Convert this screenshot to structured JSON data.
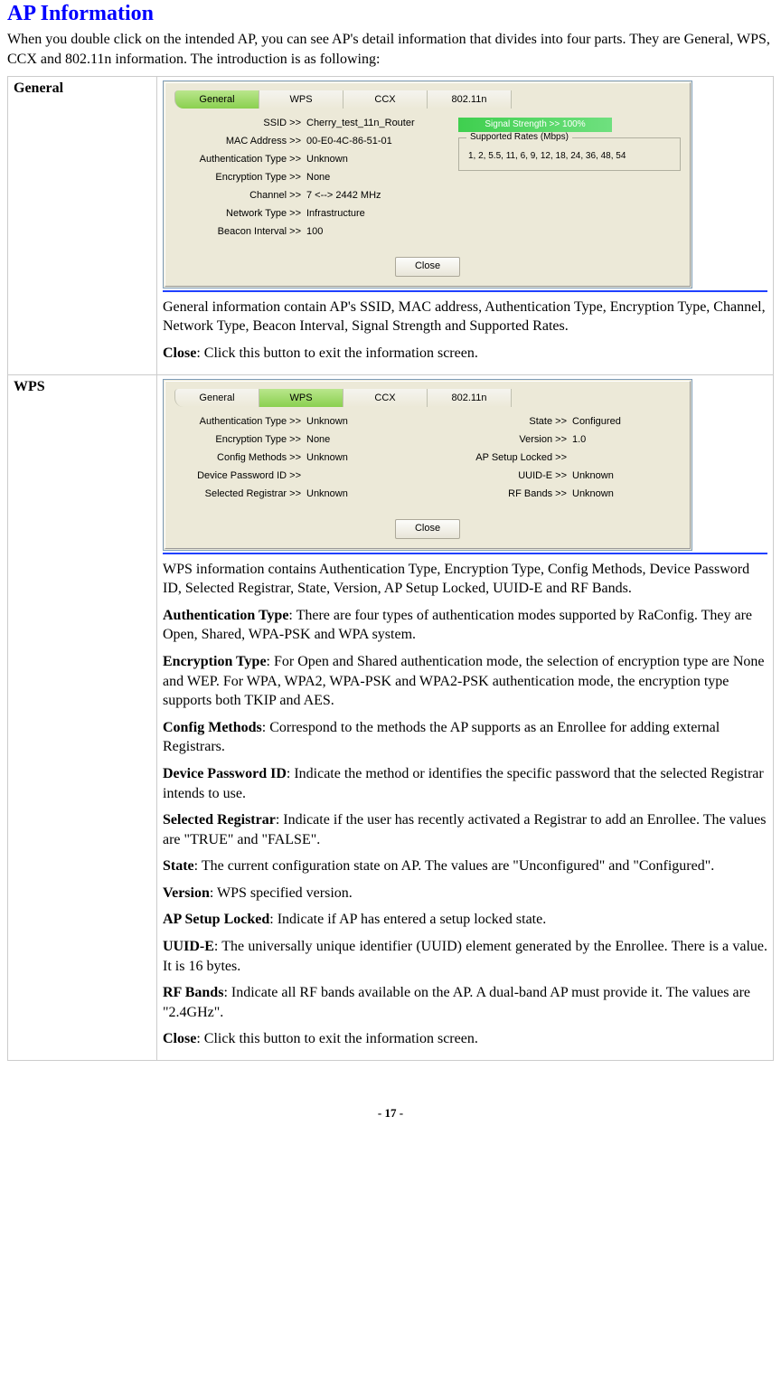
{
  "title": "AP Information",
  "intro": "When you double click on the intended AP, you can see AP's detail information that divides into four parts. They are General, WPS, CCX and 802.11n information. The introduction is as following:",
  "tabs": [
    "General",
    "WPS",
    "CCX",
    "802.11n"
  ],
  "general": {
    "section_label": "General",
    "dialog": {
      "active_tab_index": 0,
      "rows": [
        {
          "k": "SSID >>",
          "v": "Cherry_test_11n_Router"
        },
        {
          "k": "MAC Address >>",
          "v": "00-E0-4C-86-51-01"
        },
        {
          "k": "Authentication Type >>",
          "v": "Unknown"
        },
        {
          "k": "Encryption Type >>",
          "v": "None"
        },
        {
          "k": "Channel >>",
          "v": "7 <--> 2442 MHz"
        },
        {
          "k": "Network Type >>",
          "v": "Infrastructure"
        },
        {
          "k": "Beacon Interval >>",
          "v": "100"
        }
      ],
      "signal_label": "Signal Strength >> 100%",
      "signal_color": "#4fd05f",
      "rates_legend": "Supported Rates (Mbps)",
      "rates_value": "1, 2, 5.5, 11, 6, 9, 12, 18, 24, 36, 48, 54",
      "close_label": "Close"
    },
    "paragraphs": [
      {
        "text": "General information contain AP's SSID, MAC address, Authentication Type, Encryption Type, Channel, Network Type, Beacon Interval, Signal Strength and Supported Rates."
      },
      {
        "term": "Close",
        "text": ": Click this button to exit the information screen."
      }
    ]
  },
  "wps": {
    "section_label": "WPS",
    "dialog": {
      "active_tab_index": 1,
      "left_rows": [
        {
          "k": "Authentication Type >>",
          "v": "Unknown"
        },
        {
          "k": "Encryption Type >>",
          "v": "None"
        },
        {
          "k": "Config Methods >>",
          "v": "Unknown"
        },
        {
          "k": "Device Password ID >>",
          "v": ""
        },
        {
          "k": "Selected Registrar >>",
          "v": "Unknown"
        }
      ],
      "right_rows": [
        {
          "k": "State >>",
          "v": "Configured"
        },
        {
          "k": "Version >>",
          "v": "1.0"
        },
        {
          "k": "AP Setup Locked >>",
          "v": ""
        },
        {
          "k": "UUID-E >>",
          "v": "Unknown"
        },
        {
          "k": "RF Bands >>",
          "v": "Unknown"
        }
      ],
      "close_label": "Close"
    },
    "paragraphs": [
      {
        "text": "WPS information contains Authentication Type, Encryption Type, Config Methods, Device Password ID, Selected Registrar, State, Version, AP Setup Locked, UUID-E and RF Bands."
      },
      {
        "term": "Authentication Type",
        "text": ": There are four types of authentication modes supported by RaConfig. They are Open, Shared, WPA-PSK and WPA system."
      },
      {
        "term": "Encryption Type",
        "text": ": For Open and Shared authentication mode, the selection of encryption type are None and WEP. For WPA, WPA2, WPA-PSK and WPA2-PSK authentication mode, the encryption type supports both TKIP and AES."
      },
      {
        "term": "Config Methods",
        "text": ": Correspond to the methods the AP supports as an Enrollee for adding external Registrars."
      },
      {
        "term": "Device Password ID",
        "text": ": Indicate the method or identifies the specific password that the selected Registrar intends to use."
      },
      {
        "term": "Selected Registrar",
        "text": ": Indicate if the user has recently activated a Registrar to add an Enrollee. The values are \"TRUE\" and \"FALSE\"."
      },
      {
        "term": "State",
        "text": ": The current configuration state on AP. The values are \"Unconfigured\" and \"Configured\"."
      },
      {
        "term": "Version",
        "text": ": WPS specified version."
      },
      {
        "term": "AP Setup Locked",
        "text": ": Indicate if AP has entered a setup locked state."
      },
      {
        "term": "UUID-E",
        "text": ": The universally unique identifier (UUID) element generated by the Enrollee. There is a value. It is 16 bytes.",
        "justify": true
      },
      {
        "term": "RF Bands",
        "text": ": Indicate all RF bands available on the AP. A dual-band AP must provide it. The values are \"2.4GHz\"."
      },
      {
        "term": "Close",
        "text": ": Click this button to exit the information screen."
      }
    ]
  },
  "page_number": "- 17 -"
}
